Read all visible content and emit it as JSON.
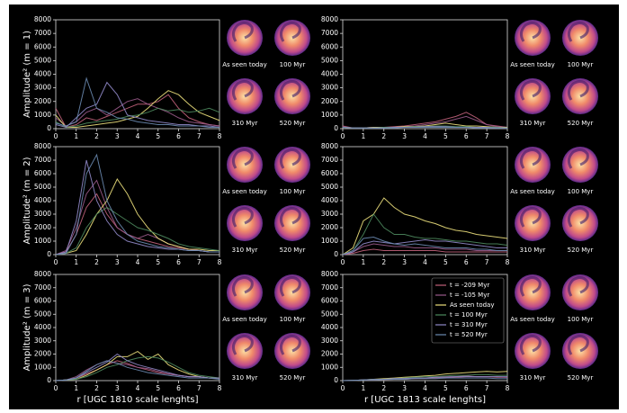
{
  "chart_data": [
    {
      "type": "line",
      "ylabel": "Amplitude² (m = 1)",
      "snapshots": [
        "As seen today",
        "100 Myr",
        "310 Myr",
        "520 Myr"
      ],
      "x": [
        0,
        0.5,
        1,
        1.5,
        2,
        2.5,
        3,
        3.5,
        4,
        4.5,
        5,
        5.5,
        6,
        6.5,
        7,
        7.5,
        8
      ],
      "xlim": [
        0,
        8
      ],
      "xticks": [
        0,
        1,
        2,
        3,
        4,
        5,
        6,
        7,
        8
      ],
      "ylim": [
        0,
        8000
      ],
      "yticks": [
        0,
        1000,
        2000,
        3000,
        4000,
        5000,
        6000,
        7000,
        8000
      ],
      "legend": false,
      "series": [
        {
          "name": "t = -209 Myr",
          "color": "#c0607a",
          "values": [
            1500,
            100,
            300,
            800,
            600,
            900,
            1200,
            1500,
            1800,
            1800,
            2000,
            2500,
            1500,
            800,
            500,
            300,
            200
          ]
        },
        {
          "name": "t = -105 Myr",
          "color": "#9a5a8a",
          "values": [
            800,
            200,
            500,
            1200,
            1500,
            1000,
            1500,
            2000,
            2200,
            1800,
            1500,
            1200,
            800,
            500,
            400,
            300,
            200
          ]
        },
        {
          "name": "As seen today",
          "color": "#ece07c",
          "values": [
            1000,
            100,
            100,
            200,
            300,
            400,
            500,
            700,
            900,
            1500,
            2200,
            2800,
            2500,
            1800,
            1200,
            900,
            600
          ]
        },
        {
          "name": "t = 100 Myr",
          "color": "#4e8a5e",
          "values": [
            500,
            100,
            200,
            400,
            500,
            600,
            700,
            900,
            1000,
            1200,
            1500,
            1300,
            1400,
            1200,
            1300,
            1500,
            1200
          ]
        },
        {
          "name": "t = 310 Myr",
          "color": "#9088c8",
          "values": [
            300,
            100,
            800,
            1500,
            1800,
            3400,
            2500,
            1000,
            800,
            600,
            500,
            400,
            300,
            300,
            200,
            200,
            100
          ]
        },
        {
          "name": "t = 520 Myr",
          "color": "#6a8ab0",
          "values": [
            400,
            200,
            500,
            3700,
            1500,
            1200,
            800,
            700,
            500,
            400,
            300,
            300,
            200,
            200,
            200,
            100,
            100
          ]
        }
      ]
    },
    {
      "type": "line",
      "snapshots": [
        "As seen today",
        "100 Myr",
        "310 Myr",
        "520 Myr"
      ],
      "x": [
        0,
        0.5,
        1,
        1.5,
        2,
        2.5,
        3,
        3.5,
        4,
        4.5,
        5,
        5.5,
        6,
        6.5,
        7,
        7.5,
        8
      ],
      "xlim": [
        0,
        8
      ],
      "xticks": [
        0,
        1,
        2,
        3,
        4,
        5,
        6,
        7,
        8
      ],
      "ylim": [
        0,
        8000
      ],
      "yticks": [
        0,
        1000,
        2000,
        3000,
        4000,
        5000,
        6000,
        7000,
        8000
      ],
      "legend": false,
      "series": [
        {
          "name": "t = -209 Myr",
          "color": "#c0607a",
          "values": [
            200,
            50,
            50,
            100,
            100,
            150,
            200,
            300,
            400,
            500,
            700,
            900,
            1200,
            800,
            300,
            200,
            100
          ]
        },
        {
          "name": "t = -105 Myr",
          "color": "#9a5a8a",
          "values": [
            150,
            50,
            50,
            100,
            100,
            100,
            150,
            200,
            300,
            400,
            500,
            700,
            900,
            600,
            300,
            150,
            100
          ]
        },
        {
          "name": "As seen today",
          "color": "#ece07c",
          "values": [
            100,
            50,
            50,
            100,
            100,
            100,
            150,
            150,
            200,
            300,
            400,
            300,
            200,
            200,
            150,
            100,
            100
          ]
        },
        {
          "name": "t = 100 Myr",
          "color": "#4e8a5e",
          "values": [
            100,
            50,
            50,
            50,
            100,
            100,
            100,
            150,
            150,
            200,
            200,
            150,
            150,
            100,
            100,
            100,
            50
          ]
        },
        {
          "name": "t = 310 Myr",
          "color": "#9088c8",
          "values": [
            100,
            50,
            50,
            50,
            50,
            100,
            100,
            100,
            150,
            150,
            150,
            100,
            100,
            100,
            100,
            50,
            50
          ]
        },
        {
          "name": "t = 520 Myr",
          "color": "#6a8ab0",
          "values": [
            100,
            50,
            50,
            50,
            50,
            50,
            100,
            100,
            100,
            100,
            100,
            100,
            100,
            50,
            50,
            50,
            50
          ]
        }
      ]
    },
    {
      "type": "line",
      "ylabel": "Amplitude² (m = 2)",
      "snapshots": [
        "As seen today",
        "100 Myr",
        "310 Myr",
        "520 Myr"
      ],
      "x": [
        0,
        0.5,
        1,
        1.5,
        2,
        2.5,
        3,
        3.5,
        4,
        4.5,
        5,
        5.5,
        6,
        6.5,
        7,
        7.5,
        8
      ],
      "xlim": [
        0,
        8
      ],
      "xticks": [
        0,
        1,
        2,
        3,
        4,
        5,
        6,
        7,
        8
      ],
      "ylim": [
        0,
        8000
      ],
      "yticks": [
        0,
        1000,
        2000,
        3000,
        4000,
        5000,
        6000,
        7000,
        8000
      ],
      "legend": false,
      "series": [
        {
          "name": "t = -209 Myr",
          "color": "#c0607a",
          "values": [
            0,
            200,
            1500,
            3500,
            4500,
            3000,
            2000,
            1500,
            1200,
            1000,
            800,
            600,
            500,
            400,
            300,
            200,
            200
          ]
        },
        {
          "name": "t = -105 Myr",
          "color": "#9a5a8a",
          "values": [
            0,
            300,
            2000,
            4500,
            5500,
            3500,
            2000,
            1500,
            1200,
            1500,
            1200,
            800,
            600,
            400,
            300,
            200,
            200
          ]
        },
        {
          "name": "As seen today",
          "color": "#ece07c",
          "values": [
            0,
            100,
            300,
            1500,
            3000,
            4000,
            5600,
            4500,
            3000,
            2000,
            1200,
            800,
            600,
            400,
            400,
            300,
            300
          ]
        },
        {
          "name": "t = 100 Myr",
          "color": "#4e8a5e",
          "values": [
            0,
            100,
            500,
            2000,
            3000,
            3500,
            3000,
            2500,
            2000,
            1800,
            1500,
            1200,
            800,
            600,
            500,
            400,
            300
          ]
        },
        {
          "name": "t = 310 Myr",
          "color": "#9088c8",
          "values": [
            0,
            200,
            2500,
            7000,
            4000,
            2500,
            1500,
            1000,
            800,
            600,
            500,
            400,
            400,
            300,
            300,
            200,
            200
          ]
        },
        {
          "name": "t = 520 Myr",
          "color": "#6a8ab0",
          "values": [
            0,
            100,
            1500,
            6000,
            7400,
            4000,
            2500,
            1500,
            1000,
            800,
            600,
            500,
            400,
            300,
            300,
            200,
            200
          ]
        }
      ]
    },
    {
      "type": "line",
      "snapshots": [
        "As seen today",
        "100 Myr",
        "310 Myr",
        "520 Myr"
      ],
      "x": [
        0,
        0.5,
        1,
        1.5,
        2,
        2.5,
        3,
        3.5,
        4,
        4.5,
        5,
        5.5,
        6,
        6.5,
        7,
        7.5,
        8
      ],
      "xlim": [
        0,
        8
      ],
      "xticks": [
        0,
        1,
        2,
        3,
        4,
        5,
        6,
        7,
        8
      ],
      "ylim": [
        0,
        8000
      ],
      "yticks": [
        0,
        1000,
        2000,
        3000,
        4000,
        5000,
        6000,
        7000,
        8000
      ],
      "legend": false,
      "series": [
        {
          "name": "t = -209 Myr",
          "color": "#c0607a",
          "values": [
            0,
            100,
            300,
            400,
            300,
            300,
            300,
            300,
            300,
            300,
            200,
            200,
            200,
            200,
            200,
            200,
            200
          ]
        },
        {
          "name": "t = -105 Myr",
          "color": "#9a5a8a",
          "values": [
            0,
            200,
            600,
            800,
            700,
            600,
            600,
            500,
            500,
            500,
            400,
            400,
            400,
            300,
            300,
            300,
            300
          ]
        },
        {
          "name": "As seen today",
          "color": "#ece07c",
          "values": [
            0,
            500,
            2500,
            3000,
            4200,
            3500,
            3000,
            2800,
            2500,
            2300,
            2000,
            1800,
            1700,
            1500,
            1400,
            1300,
            1200
          ]
        },
        {
          "name": "t = 100 Myr",
          "color": "#4e8a5e",
          "values": [
            0,
            300,
            1500,
            3000,
            2000,
            1500,
            1500,
            1300,
            1200,
            1200,
            1100,
            1000,
            1000,
            900,
            800,
            800,
            700
          ]
        },
        {
          "name": "t = 310 Myr",
          "color": "#9088c8",
          "values": [
            0,
            200,
            800,
            1000,
            900,
            800,
            900,
            1000,
            1100,
            1000,
            1000,
            900,
            800,
            700,
            600,
            500,
            500
          ]
        },
        {
          "name": "t = 520 Myr",
          "color": "#6a8ab0",
          "values": [
            0,
            300,
            1200,
            1300,
            1000,
            800,
            700,
            800,
            700,
            600,
            500,
            500,
            500,
            400,
            400,
            300,
            300
          ]
        }
      ]
    },
    {
      "type": "line",
      "ylabel": "Amplitude² (m = 3)",
      "xlabel": "r [UGC 1810 scale lenghts]",
      "snapshots": [
        "As seen today",
        "100 Myr",
        "310 Myr",
        "520 Myr"
      ],
      "x": [
        0,
        0.5,
        1,
        1.5,
        2,
        2.5,
        3,
        3.5,
        4,
        4.5,
        5,
        5.5,
        6,
        6.5,
        7,
        7.5,
        8
      ],
      "xlim": [
        0,
        8
      ],
      "xticks": [
        0,
        1,
        2,
        3,
        4,
        5,
        6,
        7,
        8
      ],
      "ylim": [
        0,
        8000
      ],
      "yticks": [
        0,
        1000,
        2000,
        3000,
        4000,
        5000,
        6000,
        7000,
        8000
      ],
      "legend": false,
      "series": [
        {
          "name": "t = -209 Myr",
          "color": "#c0607a",
          "values": [
            0,
            50,
            200,
            500,
            800,
            1200,
            1500,
            1300,
            1000,
            800,
            600,
            500,
            400,
            300,
            300,
            200,
            200
          ]
        },
        {
          "name": "t = -105 Myr",
          "color": "#9a5a8a",
          "values": [
            0,
            50,
            300,
            800,
            1200,
            1500,
            1300,
            1200,
            1000,
            900,
            700,
            500,
            400,
            300,
            300,
            200,
            200
          ]
        },
        {
          "name": "As seen today",
          "color": "#ece07c",
          "values": [
            0,
            50,
            100,
            400,
            800,
            1200,
            1800,
            1800,
            2200,
            1600,
            2000,
            1200,
            800,
            500,
            300,
            200,
            200
          ]
        },
        {
          "name": "t = 100 Myr",
          "color": "#4e8a5e",
          "values": [
            0,
            50,
            100,
            300,
            600,
            1000,
            1200,
            1500,
            1700,
            1800,
            1700,
            1400,
            1000,
            600,
            400,
            300,
            200
          ]
        },
        {
          "name": "t = 310 Myr",
          "color": "#9088c8",
          "values": [
            0,
            50,
            200,
            600,
            1000,
            1400,
            2000,
            1500,
            1200,
            1000,
            800,
            600,
            400,
            300,
            300,
            200,
            200
          ]
        },
        {
          "name": "t = 520 Myr",
          "color": "#6a8ab0",
          "values": [
            0,
            50,
            200,
            700,
            1200,
            1500,
            1300,
            1000,
            800,
            600,
            500,
            400,
            300,
            200,
            200,
            200,
            100
          ]
        }
      ]
    },
    {
      "type": "line",
      "xlabel": "r [UGC 1813 scale lenghts]",
      "snapshots": [
        "As seen today",
        "100 Myr",
        "310 Myr",
        "520 Myr"
      ],
      "x": [
        0,
        0.5,
        1,
        1.5,
        2,
        2.5,
        3,
        3.5,
        4,
        4.5,
        5,
        5.5,
        6,
        6.5,
        7,
        7.5,
        8
      ],
      "xlim": [
        0,
        8
      ],
      "xticks": [
        0,
        1,
        2,
        3,
        4,
        5,
        6,
        7,
        8
      ],
      "ylim": [
        0,
        8000
      ],
      "yticks": [
        0,
        1000,
        2000,
        3000,
        4000,
        5000,
        6000,
        7000,
        8000
      ],
      "legend": "upper right",
      "series": [
        {
          "name": "t = -209 Myr",
          "color": "#c0607a",
          "values": [
            0,
            20,
            50,
            50,
            80,
            100,
            100,
            150,
            150,
            200,
            200,
            250,
            300,
            300,
            300,
            250,
            250
          ]
        },
        {
          "name": "t = -105 Myr",
          "color": "#9a5a8a",
          "values": [
            0,
            20,
            50,
            80,
            100,
            100,
            150,
            150,
            200,
            250,
            300,
            300,
            350,
            300,
            300,
            300,
            250
          ]
        },
        {
          "name": "As seen today",
          "color": "#ece07c",
          "values": [
            0,
            20,
            50,
            100,
            150,
            200,
            250,
            300,
            350,
            400,
            500,
            550,
            600,
            650,
            700,
            650,
            700
          ]
        },
        {
          "name": "t = 100 Myr",
          "color": "#4e8a5e",
          "values": [
            0,
            20,
            50,
            100,
            100,
            150,
            200,
            250,
            300,
            300,
            350,
            400,
            400,
            450,
            450,
            400,
            400
          ]
        },
        {
          "name": "t = 310 Myr",
          "color": "#9088c8",
          "values": [
            0,
            20,
            50,
            80,
            100,
            150,
            150,
            200,
            200,
            250,
            250,
            300,
            300,
            300,
            300,
            300,
            300
          ]
        },
        {
          "name": "t = 520 Myr",
          "color": "#6a8ab0",
          "values": [
            0,
            20,
            50,
            50,
            80,
            100,
            100,
            150,
            150,
            150,
            200,
            200,
            200,
            200,
            200,
            150,
            150
          ]
        }
      ]
    }
  ]
}
